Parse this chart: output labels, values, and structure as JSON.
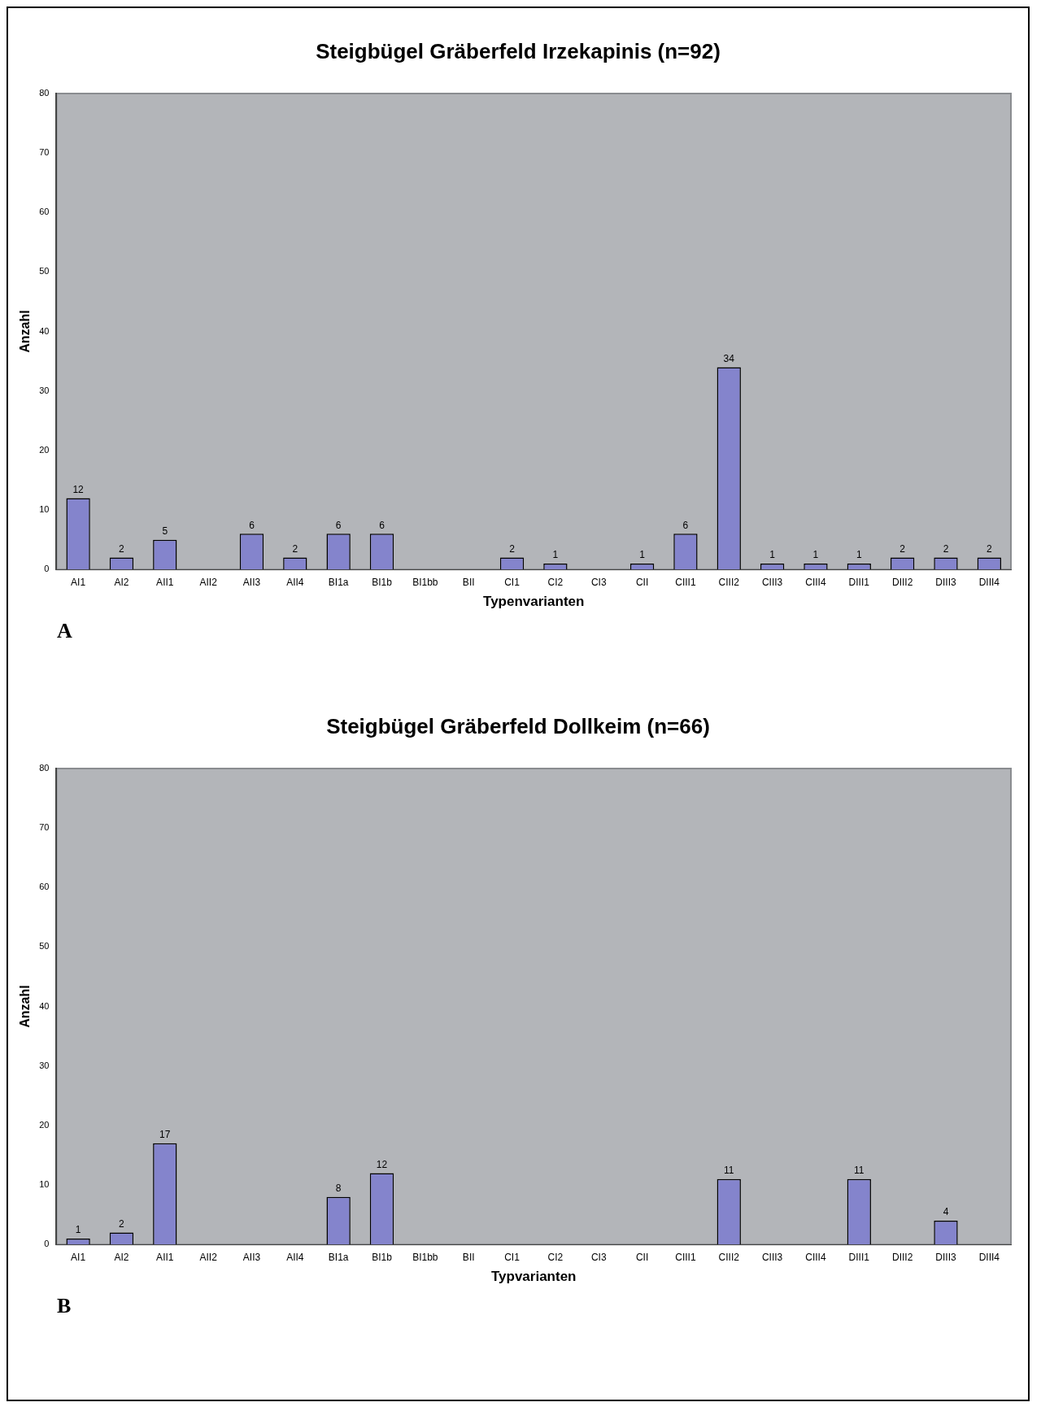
{
  "chart_data": [
    {
      "type": "bar",
      "title": "Steigbügel Gräberfeld Irzekapinis (n=92)",
      "xlabel": "Typenvarianten",
      "ylabel": "Anzahl",
      "categories": [
        "AI1",
        "AI2",
        "AII1",
        "AII2",
        "AII3",
        "AII4",
        "BI1a",
        "BI1b",
        "BI1bb",
        "BII",
        "CI1",
        "CI2",
        "CI3",
        "CII",
        "CIII1",
        "CIII2",
        "CIII3",
        "CIII4",
        "DIII1",
        "DIII2",
        "DIII3",
        "DIII4"
      ],
      "values": [
        12,
        2,
        5,
        null,
        6,
        2,
        6,
        6,
        null,
        null,
        2,
        1,
        null,
        1,
        6,
        34,
        1,
        1,
        1,
        2,
        2,
        2
      ],
      "color": "#8484cc",
      "ylim": [
        0,
        80
      ],
      "yticks": [
        0,
        10,
        20,
        30,
        40,
        50,
        60,
        70,
        80
      ],
      "data_labels": true,
      "annotations": [
        "A"
      ]
    },
    {
      "type": "bar",
      "title": "Steigbügel Gräberfeld Dollkeim (n=66)",
      "xlabel": "Typvarianten",
      "ylabel": "Anzahl",
      "categories": [
        "AI1",
        "AI2",
        "AII1",
        "AII2",
        "AII3",
        "AII4",
        "BI1a",
        "BI1b",
        "BI1bb",
        "BII",
        "CI1",
        "CI2",
        "CI3",
        "CII",
        "CIII1",
        "CIII2",
        "CIII3",
        "CIII4",
        "DIII1",
        "DIII2",
        "DIII3",
        "DIII4"
      ],
      "values": [
        1,
        2,
        17,
        null,
        null,
        null,
        8,
        12,
        null,
        null,
        null,
        null,
        null,
        null,
        null,
        11,
        null,
        null,
        11,
        null,
        4,
        null
      ],
      "color": "#8484cc",
      "ylim": [
        0,
        80
      ],
      "yticks": [
        0,
        10,
        20,
        30,
        40,
        50,
        60,
        70,
        80
      ],
      "data_labels": true,
      "annotations": [
        "B"
      ]
    }
  ]
}
